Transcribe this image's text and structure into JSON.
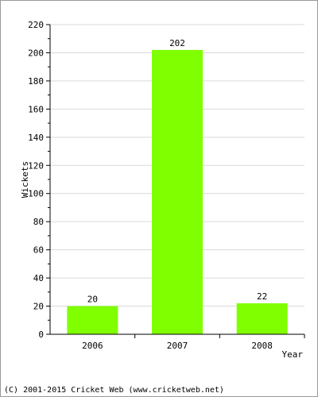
{
  "chart_data": {
    "type": "bar",
    "categories": [
      "2006",
      "2007",
      "2008"
    ],
    "values": [
      20,
      202,
      22
    ],
    "data_labels": [
      "20",
      "202",
      "22"
    ],
    "xlabel": "Year",
    "ylabel": "Wickets",
    "ylim": [
      0,
      220
    ],
    "yticks": [
      0,
      20,
      40,
      60,
      80,
      100,
      120,
      140,
      160,
      180,
      200,
      220
    ],
    "grid": true,
    "bar_color": "#80ff00",
    "grid_color": "#d9d9d9"
  },
  "footer": {
    "text": "(C) 2001-2015 Cricket Web (www.cricketweb.net)"
  }
}
